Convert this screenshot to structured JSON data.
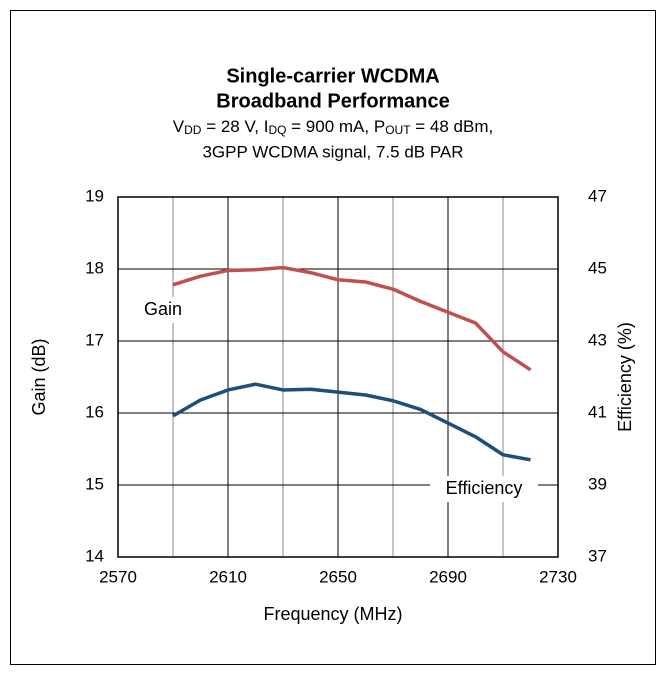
{
  "chart_data": {
    "type": "line",
    "title": [
      "Single-carrier WCDMA",
      "Broadband Performance"
    ],
    "subtitle_parts": [
      "V",
      "DD",
      " = 28 V, I",
      "DQ",
      " = 900 mA, P",
      "OUT",
      " = 48 dBm,"
    ],
    "subtitle_line2": "3GPP WCDMA signal, 7.5 dB PAR",
    "xlabel": "Frequency (MHz)",
    "ylabel": "Gain (dB)",
    "y2label": "Efficiency (%)",
    "x": [
      2590,
      2600,
      2610,
      2620,
      2630,
      2640,
      2650,
      2660,
      2670,
      2680,
      2690,
      2700,
      2710,
      2720
    ],
    "series": [
      {
        "name": "Gain",
        "color": "#c0504d",
        "values": [
          17.78,
          17.9,
          17.98,
          17.99,
          18.02,
          17.95,
          17.85,
          17.82,
          17.72,
          17.55,
          17.4,
          17.25,
          16.85,
          16.6
        ]
      },
      {
        "name": "Efficiency",
        "color": "#1f4e79",
        "axis": "y2",
        "values": [
          40.92,
          41.36,
          41.64,
          41.8,
          41.64,
          41.66,
          41.58,
          41.5,
          41.34,
          41.1,
          40.72,
          40.34,
          39.84,
          39.7
        ]
      }
    ],
    "xlim": [
      2570,
      2730
    ],
    "xticks": [
      2570,
      2610,
      2650,
      2690,
      2730
    ],
    "xminorticks": [
      2590,
      2630,
      2670,
      2710
    ],
    "ylim": [
      14,
      19
    ],
    "yticks": [
      14,
      15,
      16,
      17,
      18,
      19
    ],
    "y2lim": [
      37,
      47
    ],
    "y2ticks": [
      37,
      39,
      41,
      43,
      45,
      47
    ],
    "grid": true
  }
}
